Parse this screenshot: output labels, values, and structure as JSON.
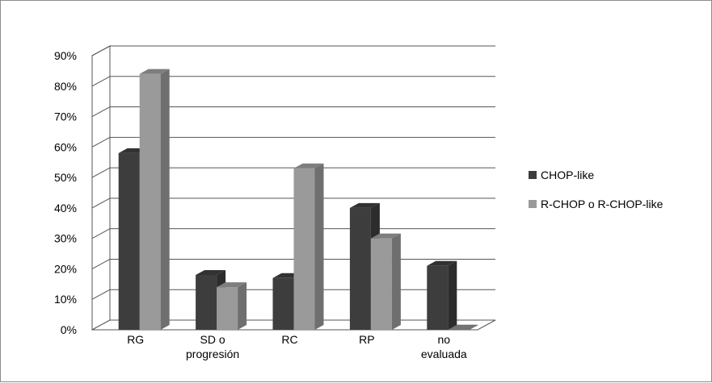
{
  "chart_data": {
    "type": "bar",
    "categories": [
      "RG",
      "SD o\nprogresión",
      "RC",
      "RP",
      "no\nevaluada"
    ],
    "series": [
      {
        "name": "CHOP-like",
        "values": [
          58,
          18,
          17,
          40,
          21
        ],
        "color": "#3d3d3d"
      },
      {
        "name": "R-CHOP o R-CHOP-like",
        "values": [
          84,
          14,
          53,
          30,
          0
        ],
        "color": "#9a9a9a"
      }
    ],
    "ylim": [
      0,
      90
    ],
    "yticks": [
      "0%",
      "10%",
      "20%",
      "30%",
      "40%",
      "50%",
      "60%",
      "70%",
      "80%",
      "90%"
    ],
    "grid": true,
    "legend": "right",
    "title": "",
    "xlabel": "",
    "ylabel": ""
  }
}
